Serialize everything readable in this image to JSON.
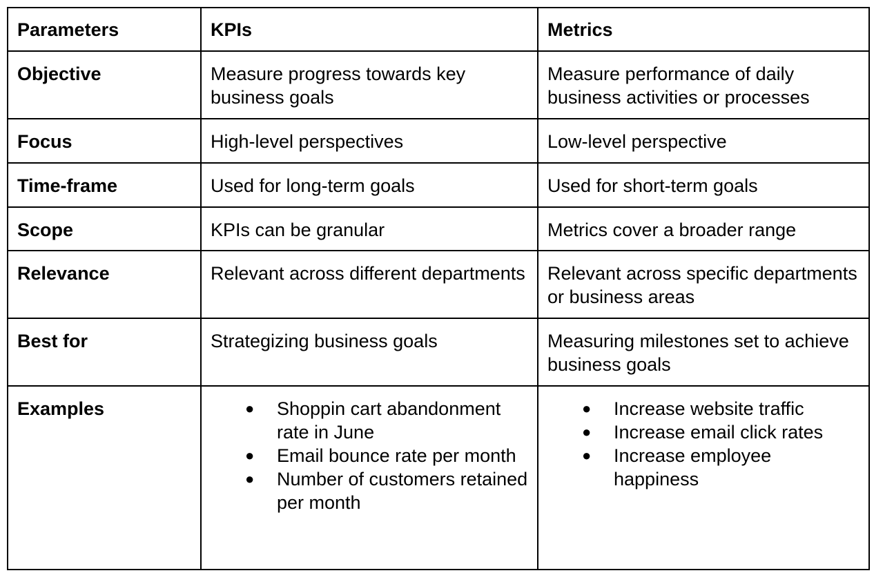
{
  "header": {
    "parameters": "Parameters",
    "kpis": "KPIs",
    "metrics": "Metrics"
  },
  "rows": [
    {
      "param": "Objective",
      "kpi": "Measure progress towards key business goals",
      "metric": "Measure performance of daily business activities or processes"
    },
    {
      "param": "Focus",
      "kpi": "High-level perspectives",
      "metric": "Low-level perspective"
    },
    {
      "param": "Time-frame",
      "kpi": "Used for long-term goals",
      "metric": "Used for short-term goals"
    },
    {
      "param": "Scope",
      "kpi": "KPIs can be granular",
      "metric": "Metrics cover a broader range"
    },
    {
      "param": "Relevance",
      "kpi": "Relevant across different departments",
      "metric": "Relevant across specific departments or business areas"
    },
    {
      "param": "Best for",
      "kpi": "Strategizing business goals",
      "metric": "Measuring milestones set to achieve business goals"
    }
  ],
  "examples": {
    "param": "Examples",
    "bullet_glyph": "●",
    "kpi": [
      "Shoppin cart abandonment rate in June",
      "Email bounce rate per month",
      "Number of customers retained per month"
    ],
    "metric": [
      "Increase website traffic",
      "Increase email click rates",
      "Increase employee happiness"
    ]
  }
}
